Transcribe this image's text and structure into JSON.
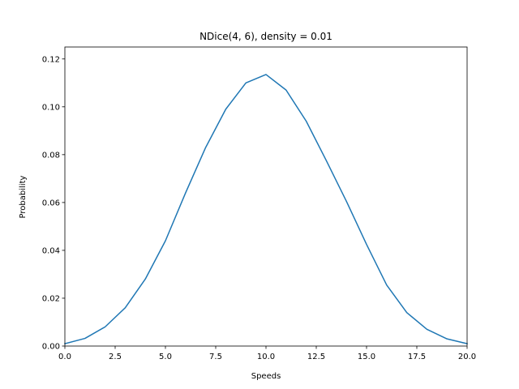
{
  "chart_data": {
    "type": "line",
    "title": "NDice(4, 6), density = 0.01",
    "xlabel": "Speeds",
    "ylabel": "Probability",
    "xlim": [
      0,
      20
    ],
    "ylim": [
      0,
      0.125
    ],
    "grid": false,
    "x_ticks": [
      "0.0",
      "2.5",
      "5.0",
      "7.5",
      "10.0",
      "12.5",
      "15.0",
      "17.5",
      "20.0"
    ],
    "y_ticks": [
      "0.00",
      "0.02",
      "0.04",
      "0.06",
      "0.08",
      "0.10",
      "0.12"
    ],
    "series": [
      {
        "color": "#1f77b4",
        "x": [
          0,
          1,
          2,
          3,
          4,
          5,
          6,
          7,
          8,
          9,
          10,
          11,
          12,
          13,
          14,
          15,
          16,
          17,
          18,
          19,
          20
        ],
        "y": [
          0.001,
          0.0032,
          0.008,
          0.016,
          0.028,
          0.044,
          0.064,
          0.083,
          0.099,
          0.11,
          0.1135,
          0.107,
          0.094,
          0.0775,
          0.0605,
          0.0425,
          0.0255,
          0.014,
          0.007,
          0.003,
          0.001
        ]
      }
    ]
  }
}
